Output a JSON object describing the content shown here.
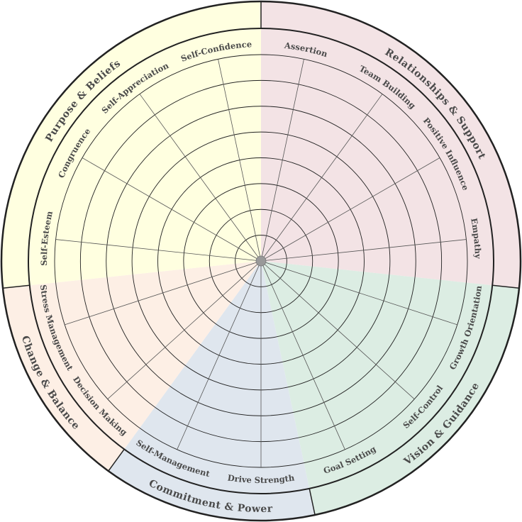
{
  "rings": 8,
  "categories": [
    {
      "name": "Relationships & Support",
      "color": "#f3e3e5",
      "items": [
        "Assertion",
        "Team Building",
        "Positive Influence",
        "Empathy"
      ]
    },
    {
      "name": "Vision & Guidance",
      "color": "#dcede3",
      "items": [
        "Growth Orientation",
        "Self-Control",
        "Goal Setting"
      ]
    },
    {
      "name": "Commitment & Power",
      "color": "#dfe6ee",
      "items": [
        "Drive Strength",
        "Self-Management"
      ]
    },
    {
      "name": "Change & Balance",
      "color": "#fdefe5",
      "items": [
        "Decision Making",
        "Stress Management"
      ]
    },
    {
      "name": "Purpose & Beliefs",
      "color": "#ffffe0",
      "items": [
        "Self-Esteem",
        "Congruence",
        "Self-Appreciation",
        "Self-Confidence"
      ]
    }
  ],
  "colors": {
    "lines": "#222222",
    "spokes": "#555555",
    "center": "#999999"
  }
}
